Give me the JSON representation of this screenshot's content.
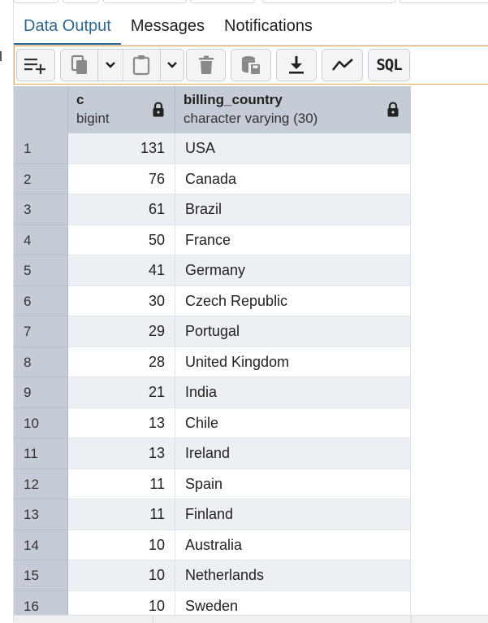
{
  "tabs": [
    {
      "label": "Data Output",
      "active": true
    },
    {
      "label": "Messages",
      "active": false
    },
    {
      "label": "Notifications",
      "active": false
    }
  ],
  "toolbar": {
    "buttons": [
      {
        "name": "add-row-button",
        "icon": "add-row-icon"
      },
      {
        "name": "copy-button",
        "icon": "copy-icon"
      },
      {
        "name": "copy-options-dropdown",
        "icon": "chevron-down-icon"
      },
      {
        "name": "paste-button",
        "icon": "paste-icon"
      },
      {
        "name": "paste-options-dropdown",
        "icon": "chevron-down-icon"
      },
      {
        "name": "delete-button",
        "icon": "trash-icon"
      },
      {
        "name": "save-data-button",
        "icon": "database-save-icon"
      },
      {
        "name": "download-button",
        "icon": "download-icon"
      },
      {
        "name": "graph-visualiser-button",
        "icon": "line-chart-icon"
      },
      {
        "name": "sql-button",
        "icon": "sql-icon"
      }
    ],
    "sql_label": "SQL"
  },
  "columns": [
    {
      "name": "c",
      "type": "bigint",
      "icon": "lock-icon"
    },
    {
      "name": "billing_country",
      "type": "character varying (30)",
      "icon": "lock-icon"
    }
  ],
  "rows": [
    {
      "n": "1",
      "c": "131",
      "country": "USA"
    },
    {
      "n": "2",
      "c": "76",
      "country": "Canada"
    },
    {
      "n": "3",
      "c": "61",
      "country": "Brazil"
    },
    {
      "n": "4",
      "c": "50",
      "country": "France"
    },
    {
      "n": "5",
      "c": "41",
      "country": "Germany"
    },
    {
      "n": "6",
      "c": "30",
      "country": "Czech Republic"
    },
    {
      "n": "7",
      "c": "29",
      "country": "Portugal"
    },
    {
      "n": "8",
      "c": "28",
      "country": "United Kingdom"
    },
    {
      "n": "9",
      "c": "21",
      "country": "India"
    },
    {
      "n": "10",
      "c": "13",
      "country": "Chile"
    },
    {
      "n": "11",
      "c": "13",
      "country": "Ireland"
    },
    {
      "n": "12",
      "c": "11",
      "country": "Spain"
    },
    {
      "n": "13",
      "c": "11",
      "country": "Finland"
    },
    {
      "n": "14",
      "c": "10",
      "country": "Australia"
    },
    {
      "n": "15",
      "c": "10",
      "country": "Netherlands"
    },
    {
      "n": "16",
      "c": "10",
      "country": "Sweden"
    }
  ],
  "colors": {
    "accent": "#326690",
    "toolbar_border": "#f0a552",
    "header_bg": "#c6ccd6",
    "row_alt_bg": "#eceff3"
  }
}
